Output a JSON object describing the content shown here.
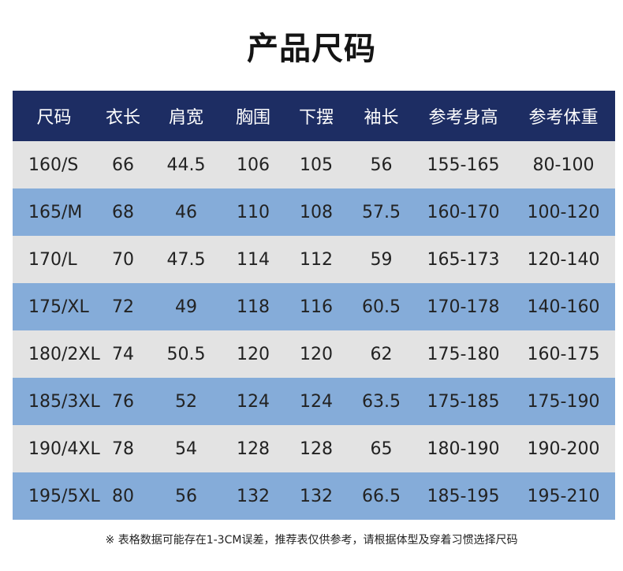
{
  "title": "产品尺码",
  "table": {
    "headers": [
      "尺码",
      "衣长",
      "肩宽",
      "胸围",
      "下摆",
      "袖长",
      "参考身高",
      "参考体重"
    ],
    "rows": [
      [
        "160/S",
        "66",
        "44.5",
        "106",
        "105",
        "56",
        "155-165",
        "80-100"
      ],
      [
        "165/M",
        "68",
        "46",
        "110",
        "108",
        "57.5",
        "160-170",
        "100-120"
      ],
      [
        "170/L",
        "70",
        "47.5",
        "114",
        "112",
        "59",
        "165-173",
        "120-140"
      ],
      [
        "175/XL",
        "72",
        "49",
        "118",
        "116",
        "60.5",
        "170-178",
        "140-160"
      ],
      [
        "180/2XL",
        "74",
        "50.5",
        "120",
        "120",
        "62",
        "175-180",
        "160-175"
      ],
      [
        "185/3XL",
        "76",
        "52",
        "124",
        "124",
        "63.5",
        "175-185",
        "175-190"
      ],
      [
        "190/4XL",
        "78",
        "54",
        "128",
        "128",
        "65",
        "180-190",
        "190-200"
      ],
      [
        "195/5XL",
        "80",
        "56",
        "132",
        "132",
        "66.5",
        "185-195",
        "195-210"
      ]
    ]
  },
  "note": "※ 表格数据可能存在1-3CM误差，推荐表仅供参考，请根据体型及穿着习惯选择尺码",
  "colors": {
    "header_bg": "#1d2d63",
    "row_light": "#e3e3e3",
    "row_blue": "#85acd9"
  }
}
